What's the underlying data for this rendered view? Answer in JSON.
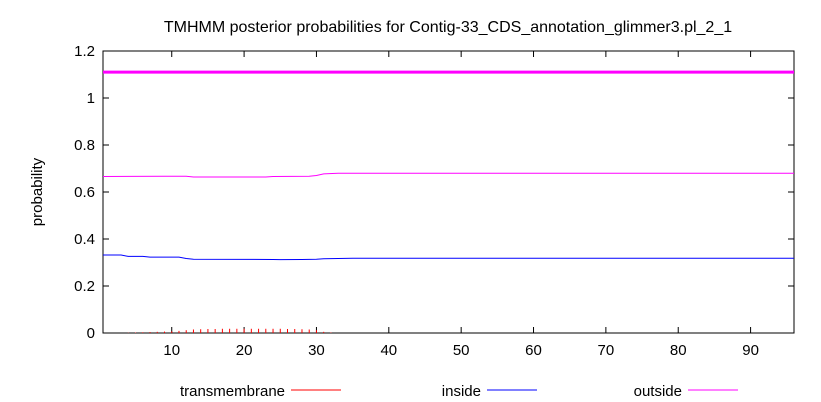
{
  "chart_data": {
    "type": "line",
    "title": "TMHMM posterior probabilities for Contig-33_CDS_annotation_glimmer3.pl_2_1",
    "xlabel": "",
    "ylabel": "probability",
    "xlim": [
      0.5,
      96
    ],
    "ylim": [
      0,
      1.2
    ],
    "x_ticks": [
      10,
      20,
      30,
      40,
      50,
      60,
      70,
      80,
      90
    ],
    "y_ticks": [
      0,
      0.2,
      0.4,
      0.6,
      0.8,
      1,
      1.2
    ],
    "y_tick_labels": [
      "0",
      "0.2",
      "0.4",
      "0.6",
      "0.8",
      "1",
      "1.2"
    ],
    "grid": false,
    "legend_position": "bottom",
    "series": [
      {
        "name": "transmembrane",
        "color": "#ff0000",
        "style": "impulses",
        "points": [
          [
            4,
            0.001
          ],
          [
            5,
            0.002
          ],
          [
            6,
            0.003
          ],
          [
            7,
            0.004
          ],
          [
            8,
            0.005
          ],
          [
            9,
            0.006
          ],
          [
            10,
            0.007
          ],
          [
            11,
            0.009
          ],
          [
            12,
            0.012
          ],
          [
            13,
            0.015
          ],
          [
            14,
            0.016
          ],
          [
            15,
            0.017
          ],
          [
            16,
            0.017
          ],
          [
            17,
            0.018
          ],
          [
            18,
            0.018
          ],
          [
            19,
            0.018
          ],
          [
            20,
            0.018
          ],
          [
            21,
            0.018
          ],
          [
            22,
            0.018
          ],
          [
            23,
            0.018
          ],
          [
            24,
            0.018
          ],
          [
            25,
            0.018
          ],
          [
            26,
            0.017
          ],
          [
            27,
            0.017
          ],
          [
            28,
            0.016
          ],
          [
            29,
            0.015
          ],
          [
            30,
            0.012
          ],
          [
            31,
            0.005
          ],
          [
            32,
            0.002
          ]
        ]
      },
      {
        "name": "inside",
        "color": "#0000ff",
        "style": "line",
        "points": [
          [
            0.5,
            0.332
          ],
          [
            3,
            0.332
          ],
          [
            4,
            0.326
          ],
          [
            6,
            0.326
          ],
          [
            7,
            0.323
          ],
          [
            11,
            0.323
          ],
          [
            12,
            0.317
          ],
          [
            13,
            0.314
          ],
          [
            24,
            0.313
          ],
          [
            25,
            0.312
          ],
          [
            28,
            0.313
          ],
          [
            30,
            0.314
          ],
          [
            31,
            0.316
          ],
          [
            33,
            0.317
          ],
          [
            35,
            0.318
          ],
          [
            96,
            0.318
          ]
        ]
      },
      {
        "name": "outside",
        "color": "#ff00ff",
        "style": "line",
        "points": [
          [
            0.5,
            0.666
          ],
          [
            9,
            0.667
          ],
          [
            12,
            0.667
          ],
          [
            13,
            0.664
          ],
          [
            23,
            0.664
          ],
          [
            24,
            0.666
          ],
          [
            29,
            0.667
          ],
          [
            30,
            0.67
          ],
          [
            31,
            0.677
          ],
          [
            33,
            0.68
          ],
          [
            96,
            0.68
          ]
        ]
      },
      {
        "name": "",
        "color": "#ff00ff",
        "style": "line-thick",
        "points": [
          [
            0.5,
            1.11
          ],
          [
            96,
            1.11
          ]
        ]
      }
    ]
  }
}
